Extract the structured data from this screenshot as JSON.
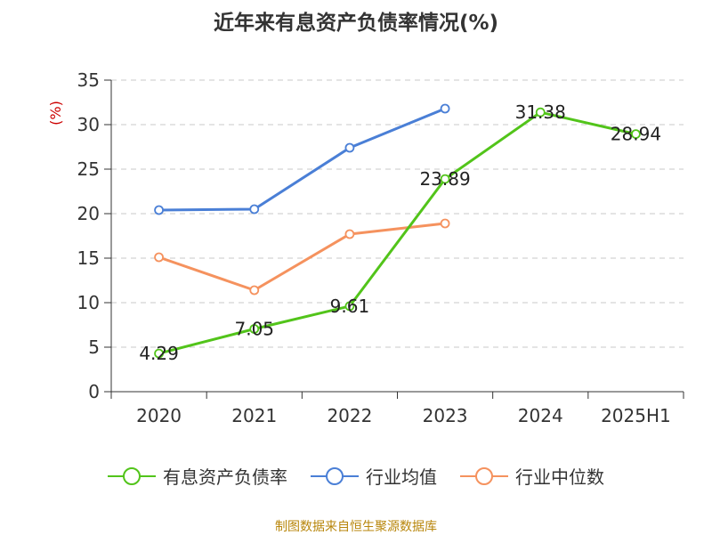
{
  "chart_data": {
    "type": "line",
    "title": "近年来有息资产负债率情况(%)",
    "ylabel": "(%)",
    "ylim": [
      0,
      35
    ],
    "yticks": [
      0,
      5,
      10,
      15,
      20,
      25,
      30,
      35
    ],
    "grid": true,
    "legend_position": "bottom",
    "categories": [
      "2020",
      "2021",
      "2022",
      "2023",
      "2024",
      "2025H1"
    ],
    "series": [
      {
        "name": "有息资产负债率",
        "color": "#52c41a",
        "values": [
          4.29,
          7.05,
          9.61,
          23.89,
          31.38,
          28.94
        ],
        "labels": [
          "4.29",
          "7.05",
          "9.61",
          "23.89",
          "31.38",
          "28.94"
        ]
      },
      {
        "name": "行业均值",
        "color": "#4a7fd6",
        "values": [
          20.4,
          20.5,
          27.4,
          31.8,
          null,
          null
        ]
      },
      {
        "name": "行业中位数",
        "color": "#f5925e",
        "values": [
          15.1,
          11.4,
          17.7,
          18.9,
          null,
          null
        ]
      }
    ]
  },
  "source": "制图数据来自恒生聚源数据库"
}
